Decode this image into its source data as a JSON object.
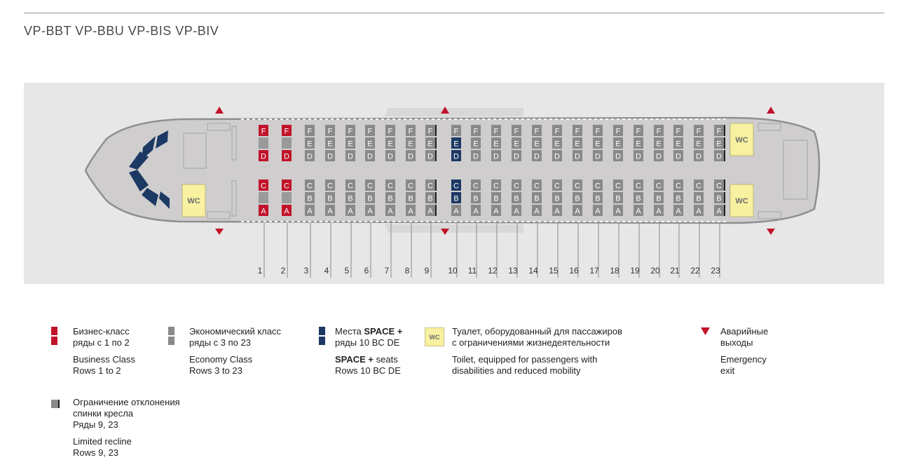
{
  "header": {
    "title": "VP-BBT  VP-BBU  VP-BIS  VP-BIV"
  },
  "colors": {
    "business": "#c1132a",
    "economy": "#898989",
    "space_plus": "#1c3964",
    "wc": "#f7f1a0",
    "exit": "#c1132a",
    "fuselage": "#cfcdce",
    "panel": "#e8e7e7"
  },
  "cabin": {
    "rows": [
      "1",
      "2",
      "3",
      "4",
      "5",
      "6",
      "7",
      "8",
      "9",
      "10",
      "11",
      "12",
      "13",
      "14",
      "15",
      "16",
      "17",
      "18",
      "19",
      "20",
      "21",
      "22",
      "23"
    ],
    "left_block_letters": [
      "F",
      "E",
      "D"
    ],
    "right_block_letters": [
      "C",
      "B",
      "A"
    ],
    "business_rows": [
      1,
      2
    ],
    "space_plus_rows": [
      10
    ],
    "space_plus_seats": [
      "B",
      "C",
      "D",
      "E"
    ],
    "limited_recline_rows": [
      9,
      23
    ],
    "wc_label": "WC",
    "wc_count": 3,
    "emergency_exit_count": 6
  },
  "legend": {
    "business": {
      "ru_1": "Бизнес-класс",
      "ru_2": "ряды с 1 по 2",
      "en_1": "Business Class",
      "en_2": "Rows 1 to 2"
    },
    "economy": {
      "ru_1": "Экономический класс",
      "ru_2": "ряды с 3 по 23",
      "en_1": "Economy Class",
      "en_2": "Rows 3 to 23"
    },
    "space": {
      "ru_1a": "Места ",
      "ru_1b": "SPACE +",
      "ru_2": "ряды 10 BC DE",
      "en_1a": "SPACE +",
      "en_1b": " seats",
      "en_2": "Rows 10 BC DE"
    },
    "wc": {
      "swatch": "WC",
      "ru_1": "Туалет, оборудованный для пассажиров",
      "ru_2": "с ограничениями жизнедеятельности",
      "en_1": "Toilet, equipped for passengers with",
      "en_2": "disabilities and reduced mobility"
    },
    "exit": {
      "ru_1": "Аварийные",
      "ru_2": "выходы",
      "en_1": "Emergency",
      "en_2": "exit"
    },
    "recline": {
      "ru_1": "Ограничение отклонения",
      "ru_2": "спинки кресла",
      "ru_3": "Ряды 9, 23",
      "en_1": "Limited recline",
      "en_2": "Rows 9, 23"
    }
  }
}
